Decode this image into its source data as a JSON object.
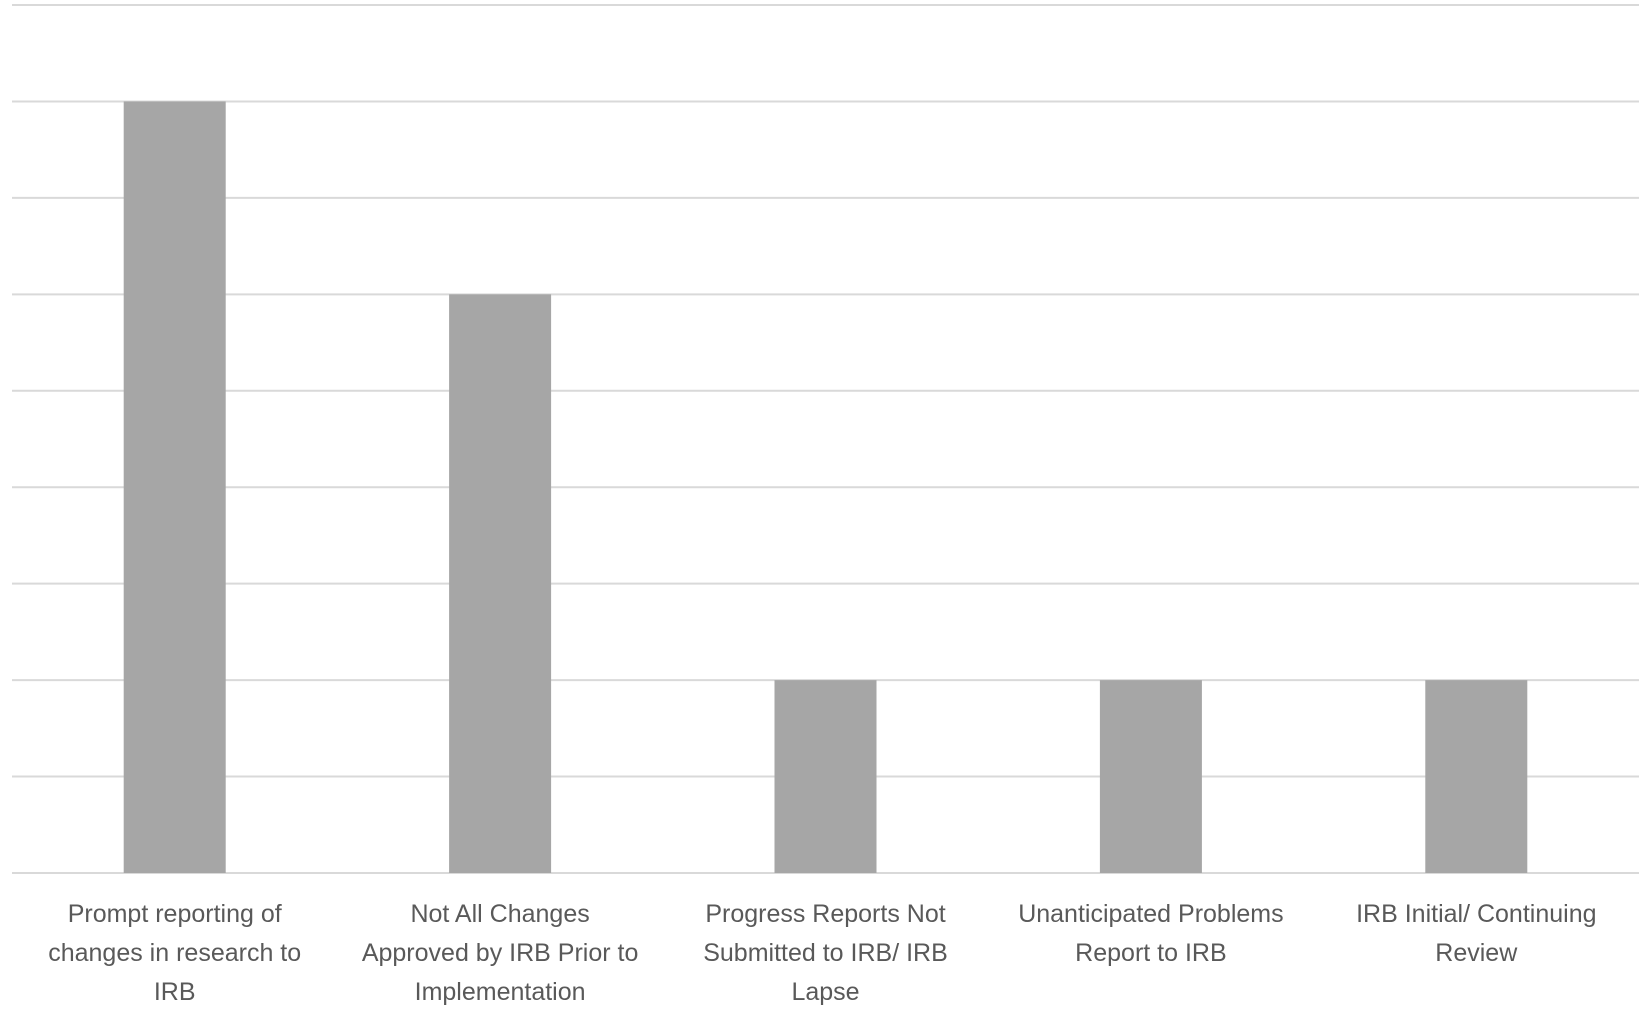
{
  "chart_data": {
    "type": "bar",
    "categories": [
      [
        "Prompt reporting of",
        "changes in research to",
        "IRB"
      ],
      [
        "Not All Changes",
        "Approved by IRB Prior to",
        "Implementation"
      ],
      [
        "Progress Reports Not",
        "Submitted to IRB/ IRB",
        "Lapse"
      ],
      [
        "Unanticipated Problems",
        "Report to IRB"
      ],
      [
        "IRB Initial/ Continuing",
        "Review"
      ]
    ],
    "values": [
      8,
      6,
      2,
      2,
      2
    ],
    "ylim": [
      0,
      9
    ],
    "grid": true,
    "bar_color": "#a6a6a6",
    "grid_color": "#d9d9d9"
  }
}
